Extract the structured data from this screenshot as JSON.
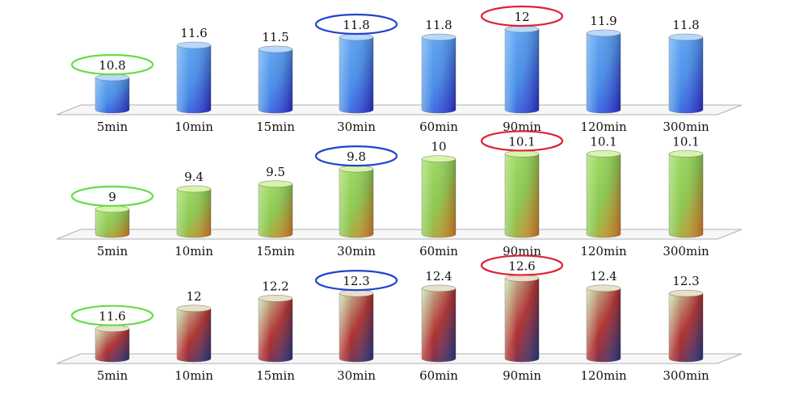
{
  "chart_data": [
    {
      "type": "bar",
      "categories": [
        "5min",
        "10min",
        "15min",
        "30min",
        "60min",
        "90min",
        "120min",
        "300min"
      ],
      "values": [
        10.8,
        11.6,
        11.5,
        11.8,
        11.8,
        12,
        11.9,
        11.8
      ],
      "value_labels": [
        "10.8",
        "11.6",
        "11.5",
        "11.8",
        "11.8",
        "12",
        "11.9",
        "11.8"
      ],
      "ylim": [
        10.0,
        12.2
      ],
      "highlights": [
        {
          "category": "5min",
          "color": "#66dd44"
        },
        {
          "category": "30min",
          "color": "#2244cc"
        },
        {
          "category": "90min",
          "color": "#dd2233"
        }
      ],
      "colors": {
        "top": "#b8d8ff",
        "light": "#6fb3f5",
        "mid": "#4a8ee8",
        "dark": "#2a2ad0"
      }
    },
    {
      "type": "bar",
      "categories": [
        "5min",
        "10min",
        "15min",
        "30min",
        "60min",
        "90min",
        "120min",
        "300min"
      ],
      "values": [
        9,
        9.4,
        9.5,
        9.8,
        10,
        10.1,
        10.1,
        10.1
      ],
      "value_labels": [
        "9",
        "9.4",
        "9.5",
        "9.8",
        "10",
        "10.1",
        "10.1",
        "10.1"
      ],
      "ylim": [
        8.5,
        10.3
      ],
      "highlights": [
        {
          "category": "5min",
          "color": "#66dd44"
        },
        {
          "category": "30min",
          "color": "#2244cc"
        },
        {
          "category": "90min",
          "color": "#dd2233"
        }
      ],
      "colors": {
        "top": "#d6f5a8",
        "light": "#a8e070",
        "mid": "#8cc850",
        "dark": "#e07a20"
      }
    },
    {
      "type": "bar",
      "categories": [
        "5min",
        "10min",
        "15min",
        "30min",
        "60min",
        "90min",
        "120min",
        "300min"
      ],
      "values": [
        11.6,
        12,
        12.2,
        12.3,
        12.4,
        12.6,
        12.4,
        12.3
      ],
      "value_labels": [
        "11.6",
        "12",
        "12.2",
        "12.3",
        "12.4",
        "12.6",
        "12.4",
        "12.3"
      ],
      "ylim": [
        11.0,
        12.8
      ],
      "highlights": [
        {
          "category": "5min",
          "color": "#66dd44"
        },
        {
          "category": "30min",
          "color": "#2244cc"
        },
        {
          "category": "90min",
          "color": "#dd2233"
        }
      ],
      "colors": {
        "top": "#e8e0c8",
        "light": "#c8e8b0",
        "mid": "#b03030",
        "dark": "#203a8a"
      }
    }
  ]
}
